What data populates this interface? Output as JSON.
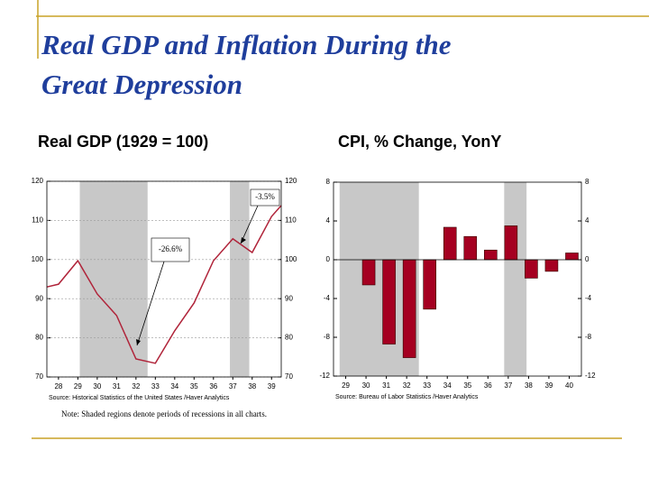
{
  "slide": {
    "title": [
      "Real GDP and Inflation During the",
      "Great Depression"
    ],
    "note": "Note:  Shaded regions denote periods of recessions in all charts."
  },
  "chart_data": [
    {
      "type": "line",
      "title": "Real GDP (1929 = 100)",
      "x": [
        27.4,
        28,
        29,
        30,
        31,
        32,
        33,
        34,
        35,
        36,
        37,
        38,
        39,
        39.5
      ],
      "values": [
        93.0,
        93.7,
        99.7,
        91.2,
        85.7,
        74.6,
        73.5,
        81.8,
        88.9,
        99.7,
        105.3,
        101.8,
        111.0,
        113.8
      ],
      "color": "#b0243a",
      "xlim": [
        27.4,
        39.5
      ],
      "xticks": [
        28,
        29,
        30,
        31,
        32,
        33,
        34,
        35,
        36,
        37,
        38,
        39
      ],
      "ylim": [
        70,
        120
      ],
      "yticks": [
        70,
        80,
        90,
        100,
        110,
        120
      ],
      "shaded": [
        [
          29.1,
          32.6
        ],
        [
          36.85,
          37.85
        ]
      ],
      "annotations": [
        "-26.6%",
        "-3.5%"
      ],
      "source": "Source:  Historical Statistics of the United States /Haver Analytics",
      "grid": true
    },
    {
      "type": "bar",
      "title": "CPI, % Change, YonY",
      "x": [
        29,
        30,
        31,
        32,
        33,
        34,
        35,
        36,
        37,
        38,
        39,
        40
      ],
      "values": [
        0,
        -2.6,
        -8.7,
        -10.1,
        -5.1,
        3.35,
        2.4,
        1.0,
        3.5,
        -1.9,
        -1.2,
        0.7
      ],
      "color": "#a50021",
      "xlim": [
        28.4,
        40.6
      ],
      "ylim": [
        -12,
        8
      ],
      "yticks": [
        -12,
        -8,
        -4,
        0,
        4,
        8
      ],
      "shaded": [
        [
          28.7,
          32.6
        ],
        [
          36.8,
          37.9
        ]
      ],
      "source": "Source:  Bureau of Labor Statistics /Haver Analytics",
      "grid": false
    }
  ]
}
